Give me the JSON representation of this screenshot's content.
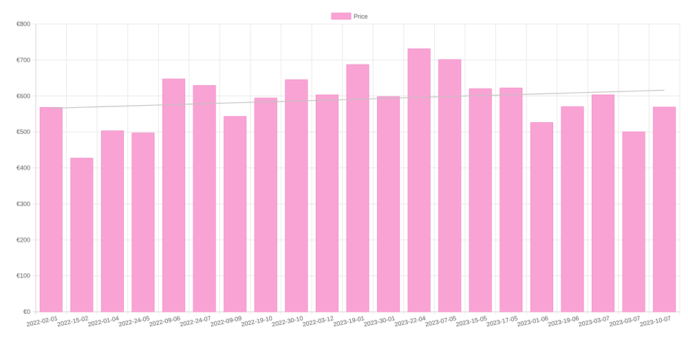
{
  "colors": {
    "bar_fill": "#f9a3d4",
    "bar_stroke": "#f28cc6",
    "trend_line": "#c0c0c0",
    "grid": "#e8e8e8",
    "axis": "#cfcfcf",
    "text": "#555555"
  },
  "chart_data": {
    "type": "bar",
    "legend": {
      "position": "top-center",
      "items": [
        {
          "name": "Price"
        }
      ]
    },
    "grid": true,
    "y_tick_labels": [
      "€0",
      "€100",
      "€200",
      "€300",
      "€400",
      "€500",
      "€600",
      "€700",
      "€800"
    ],
    "ylim": [
      0,
      800
    ],
    "categories": [
      "2022-02-01",
      "2022-15-02",
      "2022-01-04",
      "2022-24-05",
      "2022-09-06",
      "2022-24-07",
      "2022-09-09",
      "2022-19-10",
      "2022-30-10",
      "2022-03-12",
      "2023-19-01",
      "2023-30-01",
      "2023-22-04",
      "2023-07-05",
      "2023-15-05",
      "2023-17-05",
      "2023-01-06",
      "2023-19-06",
      "2023-03-07",
      "2023-03-07",
      "2023-10-07"
    ],
    "series": [
      {
        "name": "Price",
        "type": "bar",
        "values": [
          568,
          427,
          503,
          497,
          647,
          629,
          543,
          594,
          645,
          603,
          687,
          598,
          731,
          701,
          620,
          622,
          526,
          570,
          603,
          500,
          569
        ]
      },
      {
        "type": "line",
        "values": [
          566,
          568.5,
          571,
          573.5,
          576,
          578.5,
          581,
          583.5,
          586,
          588.5,
          591,
          593.5,
          596,
          598.5,
          601,
          603.5,
          606,
          608.5,
          611,
          613.5,
          616
        ]
      }
    ]
  }
}
